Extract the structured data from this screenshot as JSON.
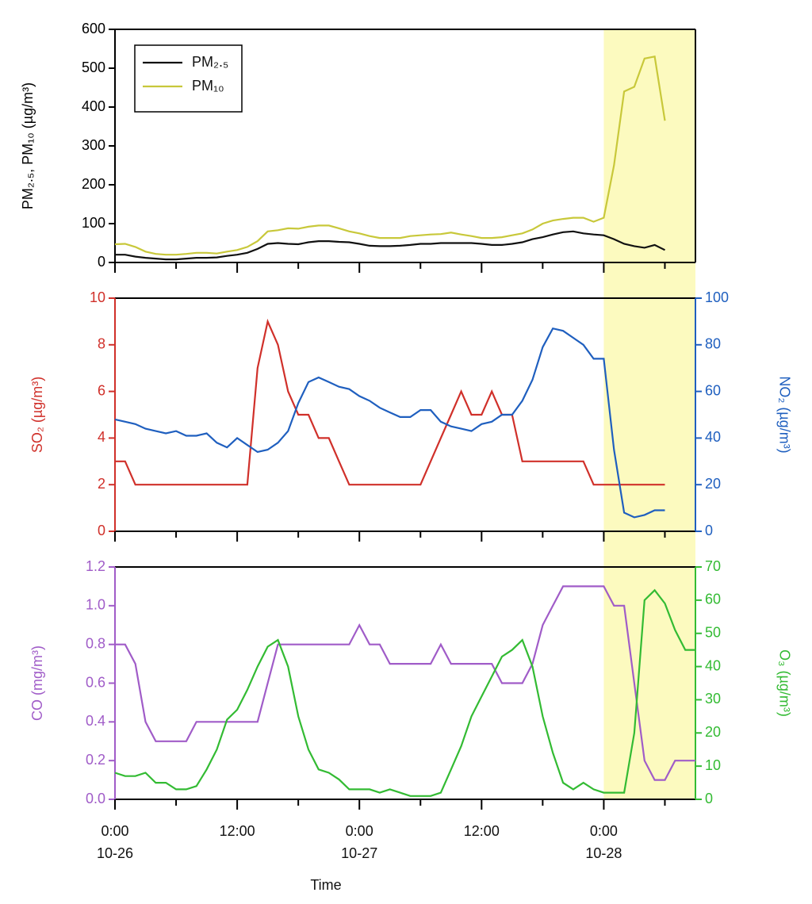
{
  "chart_data": [
    {
      "type": "line",
      "ylabel": "PM₂.₅, PM₁₀ (µg/m³)",
      "legend": "upper left",
      "xlim": [
        "10-26 00:00",
        "10-28 09:00"
      ],
      "xticks": [
        "10-26 00:00",
        "10-26 12:00",
        "10-27 00:00",
        "10-27 12:00",
        "10-28 00:00"
      ],
      "highlight": [
        "10-28 00:00",
        "10-28 09:00"
      ],
      "highlight_color": "#fcfabf",
      "ylim": [
        0,
        600
      ],
      "yticks": [
        0,
        100,
        200,
        300,
        400,
        500,
        600
      ],
      "x": [
        "10-26 00:00",
        "10-26 01:00",
        "10-26 02:00",
        "10-26 03:00",
        "10-26 04:00",
        "10-26 05:00",
        "10-26 06:00",
        "10-26 07:00",
        "10-26 08:00",
        "10-26 09:00",
        "10-26 10:00",
        "10-26 11:00",
        "10-26 12:00",
        "10-26 13:00",
        "10-26 14:00",
        "10-26 15:00",
        "10-26 16:00",
        "10-26 17:00",
        "10-26 18:00",
        "10-26 19:00",
        "10-26 20:00",
        "10-26 21:00",
        "10-26 22:00",
        "10-26 23:00",
        "10-27 00:00",
        "10-27 01:00",
        "10-27 02:00",
        "10-27 03:00",
        "10-27 04:00",
        "10-27 05:00",
        "10-27 06:00",
        "10-27 07:00",
        "10-27 08:00",
        "10-27 09:00",
        "10-27 10:00",
        "10-27 11:00",
        "10-27 12:00",
        "10-27 13:00",
        "10-27 14:00",
        "10-27 15:00",
        "10-27 16:00",
        "10-27 17:00",
        "10-27 18:00",
        "10-27 19:00",
        "10-27 20:00",
        "10-27 21:00",
        "10-27 22:00",
        "10-27 23:00",
        "10-28 00:00",
        "10-28 01:00",
        "10-28 02:00",
        "10-28 03:00",
        "10-28 04:00",
        "10-28 05:00",
        "10-28 06:00"
      ],
      "series": [
        {
          "name": "PM₂.₅",
          "color": "#111111",
          "values": [
            20,
            20,
            15,
            12,
            10,
            8,
            8,
            10,
            12,
            12,
            13,
            17,
            20,
            25,
            35,
            48,
            50,
            48,
            47,
            52,
            55,
            55,
            53,
            52,
            48,
            43,
            42,
            42,
            43,
            45,
            48,
            48,
            50,
            50,
            50,
            50,
            48,
            45,
            45,
            48,
            52,
            60,
            65,
            72,
            78,
            80,
            75,
            72,
            70,
            60,
            48,
            42,
            38,
            45,
            32
          ]
        },
        {
          "name": "PM₁₀",
          "color": "#c8c83a",
          "values": [
            47,
            48,
            40,
            28,
            22,
            20,
            20,
            22,
            25,
            25,
            23,
            28,
            32,
            40,
            55,
            80,
            83,
            88,
            87,
            92,
            95,
            95,
            88,
            80,
            75,
            68,
            63,
            63,
            63,
            68,
            70,
            72,
            73,
            77,
            72,
            68,
            63,
            63,
            65,
            70,
            75,
            85,
            100,
            108,
            112,
            115,
            115,
            105,
            115,
            250,
            440,
            452,
            525,
            530,
            365
          ]
        }
      ]
    },
    {
      "type": "line",
      "ylabel": "SO₂ (µg/m³)",
      "y2label": "NO₂ (µg/m³)",
      "xlim": [
        "10-26 00:00",
        "10-28 09:00"
      ],
      "xticks": [
        "10-26 00:00",
        "10-26 12:00",
        "10-27 00:00",
        "10-27 12:00",
        "10-28 00:00"
      ],
      "highlight": [
        "10-28 00:00",
        "10-28 09:00"
      ],
      "highlight_color": "#fcfabf",
      "ylim": [
        0,
        10
      ],
      "yticks": [
        0,
        2,
        4,
        6,
        8,
        10
      ],
      "y2lim": [
        0,
        100
      ],
      "y2ticks": [
        0,
        20,
        40,
        60,
        80,
        100
      ],
      "x": [
        "10-26 00:00",
        "10-26 01:00",
        "10-26 02:00",
        "10-26 03:00",
        "10-26 04:00",
        "10-26 05:00",
        "10-26 06:00",
        "10-26 07:00",
        "10-26 08:00",
        "10-26 09:00",
        "10-26 10:00",
        "10-26 11:00",
        "10-26 12:00",
        "10-26 13:00",
        "10-26 14:00",
        "10-26 15:00",
        "10-26 16:00",
        "10-26 17:00",
        "10-26 18:00",
        "10-26 19:00",
        "10-26 20:00",
        "10-26 21:00",
        "10-26 22:00",
        "10-26 23:00",
        "10-27 00:00",
        "10-27 01:00",
        "10-27 02:00",
        "10-27 03:00",
        "10-27 04:00",
        "10-27 05:00",
        "10-27 06:00",
        "10-27 07:00",
        "10-27 08:00",
        "10-27 09:00",
        "10-27 10:00",
        "10-27 11:00",
        "10-27 12:00",
        "10-27 13:00",
        "10-27 14:00",
        "10-27 15:00",
        "10-27 16:00",
        "10-27 17:00",
        "10-27 18:00",
        "10-27 19:00",
        "10-27 20:00",
        "10-27 21:00",
        "10-27 22:00",
        "10-27 23:00",
        "10-28 00:00",
        "10-28 01:00",
        "10-28 02:00",
        "10-28 03:00",
        "10-28 04:00",
        "10-28 05:00",
        "10-28 06:00"
      ],
      "series": [
        {
          "color": "#d0302a",
          "values": [
            3,
            3,
            2,
            2,
            2,
            2,
            2,
            2,
            2,
            2,
            2,
            2,
            2,
            2,
            7,
            9,
            8,
            6,
            5,
            5,
            4,
            4,
            3,
            2,
            2,
            2,
            2,
            2,
            2,
            2,
            2,
            3,
            4,
            5,
            6,
            5,
            5,
            6,
            5,
            5,
            3,
            3,
            3,
            3,
            3,
            3,
            3,
            2,
            2,
            2,
            2,
            2,
            2,
            2,
            2
          ]
        },
        {
          "color": "#1f5fbf",
          "axis": "y2",
          "values": [
            48,
            47,
            46,
            44,
            43,
            42,
            43,
            41,
            41,
            42,
            38,
            36,
            40,
            37,
            34,
            35,
            38,
            43,
            55,
            64,
            66,
            64,
            62,
            61,
            58,
            56,
            53,
            51,
            49,
            49,
            52,
            52,
            47,
            45,
            44,
            43,
            46,
            47,
            50,
            50,
            56,
            65,
            79,
            87,
            86,
            83,
            80,
            74,
            74,
            35,
            8,
            6,
            7,
            9,
            9
          ]
        }
      ]
    },
    {
      "type": "line",
      "ylabel": "CO (mg/m³)",
      "y2label": "O₃ (µg/m³)",
      "xlabel": "Time",
      "xlim": [
        "10-26 00:00",
        "10-28 09:00"
      ],
      "xticks": [
        {
          "value": "10-26 00:00",
          "label": "0:00\n10-26"
        },
        {
          "value": "10-26 12:00",
          "label": "12:00"
        },
        {
          "value": "10-27 00:00",
          "label": "0:00\n10-27"
        },
        {
          "value": "10-27 12:00",
          "label": "12:00"
        },
        {
          "value": "10-28 00:00",
          "label": "0:00\n10-28"
        }
      ],
      "highlight": [
        "10-28 00:00",
        "10-28 09:00"
      ],
      "highlight_color": "#fcfabf",
      "ylim": [
        0,
        1.2
      ],
      "yticks": [
        {
          "value": 0,
          "label": "0.0"
        },
        0.2,
        0.4,
        0.6,
        0.8,
        {
          "value": 1,
          "label": "1.0"
        },
        1.2
      ],
      "y2lim": [
        0,
        70
      ],
      "y2ticks": [
        0,
        10,
        20,
        30,
        40,
        50,
        60,
        70
      ],
      "x": [
        "10-26 00:00",
        "10-26 01:00",
        "10-26 02:00",
        "10-26 03:00",
        "10-26 04:00",
        "10-26 05:00",
        "10-26 06:00",
        "10-26 07:00",
        "10-26 08:00",
        "10-26 09:00",
        "10-26 10:00",
        "10-26 11:00",
        "10-26 12:00",
        "10-26 13:00",
        "10-26 14:00",
        "10-26 15:00",
        "10-26 16:00",
        "10-26 17:00",
        "10-26 18:00",
        "10-26 19:00",
        "10-26 20:00",
        "10-26 21:00",
        "10-26 22:00",
        "10-26 23:00",
        "10-27 00:00",
        "10-27 01:00",
        "10-27 02:00",
        "10-27 03:00",
        "10-27 04:00",
        "10-27 05:00",
        "10-27 06:00",
        "10-27 07:00",
        "10-27 08:00",
        "10-27 09:00",
        "10-27 10:00",
        "10-27 11:00",
        "10-27 12:00",
        "10-27 13:00",
        "10-27 14:00",
        "10-27 15:00",
        "10-27 16:00",
        "10-27 17:00",
        "10-27 18:00",
        "10-27 19:00",
        "10-27 20:00",
        "10-27 21:00",
        "10-27 22:00",
        "10-27 23:00",
        "10-28 00:00",
        "10-28 01:00",
        "10-28 02:00",
        "10-28 03:00",
        "10-28 04:00",
        "10-28 05:00",
        "10-28 06:00",
        "10-28 07:00",
        "10-28 08:00",
        "10-28 09:00"
      ],
      "series": [
        {
          "color": "#a05cc8",
          "values": [
            0.8,
            0.8,
            0.7,
            0.4,
            0.3,
            0.3,
            0.3,
            0.3,
            0.4,
            0.4,
            0.4,
            0.4,
            0.4,
            0.4,
            0.4,
            0.6,
            0.8,
            0.8,
            0.8,
            0.8,
            0.8,
            0.8,
            0.8,
            0.8,
            0.9,
            0.8,
            0.8,
            0.7,
            0.7,
            0.7,
            0.7,
            0.7,
            0.8,
            0.7,
            0.7,
            0.7,
            0.7,
            0.7,
            0.6,
            0.6,
            0.6,
            0.7,
            0.9,
            1.0,
            1.1,
            1.1,
            1.1,
            1.1,
            1.1,
            1.0,
            1.0,
            0.6,
            0.2,
            0.1,
            0.1,
            0.2,
            0.2,
            0.2
          ]
        },
        {
          "color": "#33bb33",
          "axis": "y2",
          "values": [
            8,
            7,
            7,
            8,
            5,
            5,
            3,
            3,
            4,
            9,
            15,
            24,
            27,
            33,
            40,
            46,
            48,
            40,
            25,
            15,
            9,
            8,
            6,
            3,
            3,
            3,
            2,
            3,
            2,
            1,
            1,
            1,
            2,
            9,
            16,
            25,
            31,
            37,
            43,
            45,
            48,
            40,
            25,
            14,
            5,
            3,
            5,
            3,
            2,
            2,
            2,
            20,
            60,
            63,
            59,
            51,
            45,
            45
          ]
        }
      ]
    }
  ]
}
